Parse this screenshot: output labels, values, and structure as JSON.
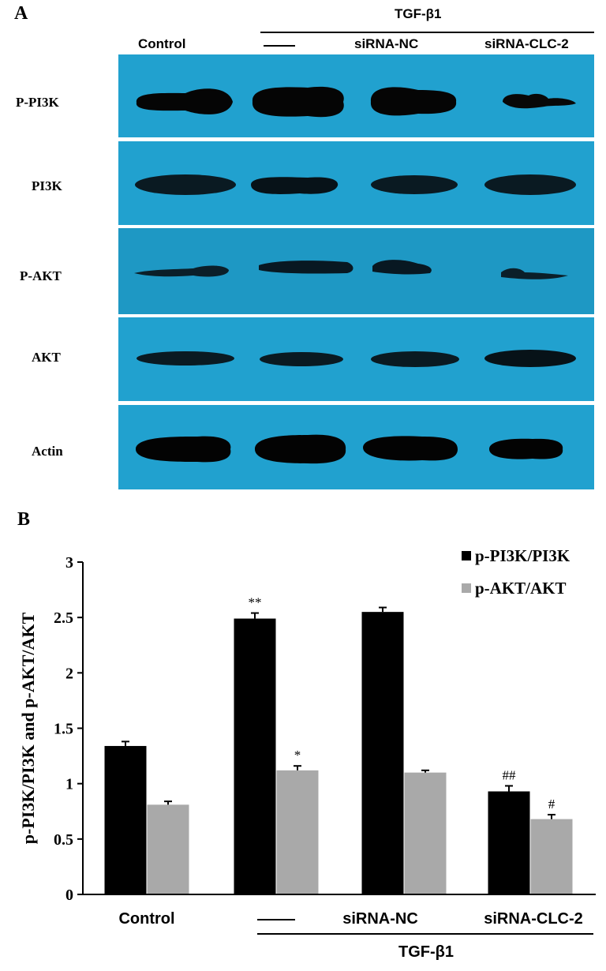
{
  "panels": {
    "a": "A",
    "b": "B"
  },
  "blot": {
    "treatment_header": "TGF-β1",
    "lanes": [
      "Control",
      "——",
      "siRNA-NC",
      "siRNA-CLC-2"
    ],
    "rows": [
      {
        "label": "P-PI3K"
      },
      {
        "label": "PI3K"
      },
      {
        "label": "P-AKT"
      },
      {
        "label": "AKT"
      },
      {
        "label": "Actin"
      }
    ],
    "membrane_color": "#21a1cf"
  },
  "chart_data": {
    "type": "bar",
    "categories": [
      "Control",
      "——",
      "siRNA-NC",
      "siRNA-CLC-2"
    ],
    "group_label": "TGF-β1",
    "ylabel": "p-PI3K/PI3K and p-AKT/AKT",
    "ylim": [
      0,
      3
    ],
    "yticks": [
      "0",
      "0.5",
      "1",
      "1.5",
      "2",
      "2.5",
      "3"
    ],
    "series": [
      {
        "name": "p-PI3K/PI3K",
        "color": "#000000",
        "values": [
          1.34,
          2.49,
          2.55,
          0.93
        ],
        "errors": [
          0.04,
          0.05,
          0.04,
          0.05
        ],
        "annotations": [
          "",
          "**",
          "",
          "##"
        ]
      },
      {
        "name": "p-AKT/AKT",
        "color": "#a9a9a9",
        "values": [
          0.81,
          1.12,
          1.1,
          0.68
        ],
        "errors": [
          0.03,
          0.04,
          0.02,
          0.04
        ],
        "annotations": [
          "",
          "*",
          "",
          "#"
        ]
      }
    ],
    "legend": "top-right",
    "grid": false
  }
}
